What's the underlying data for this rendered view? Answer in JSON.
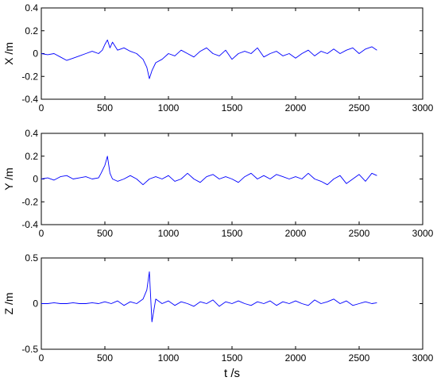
{
  "chart_data": [
    {
      "type": "line",
      "ylabel": "X /m",
      "xlabel": "",
      "xlim": [
        0,
        3000
      ],
      "ylim": [
        -0.4,
        0.4
      ],
      "x_ticks": [
        "0",
        "500",
        "1000",
        "1500",
        "2000",
        "2500",
        "3000"
      ],
      "y_ticks": [
        "0.4",
        "0.2",
        "0",
        "-0.2",
        "-0.4"
      ],
      "color": "#0000ff",
      "grid": false,
      "series": [
        {
          "x": [
            0,
            50,
            100,
            150,
            200,
            250,
            300,
            350,
            400,
            450,
            480,
            500,
            520,
            540,
            560,
            600,
            650,
            700,
            750,
            800,
            830,
            850,
            870,
            900,
            950,
            1000,
            1050,
            1100,
            1150,
            1200,
            1250,
            1300,
            1350,
            1400,
            1450,
            1500,
            1550,
            1600,
            1650,
            1700,
            1750,
            1800,
            1850,
            1900,
            1950,
            2000,
            2050,
            2100,
            2150,
            2200,
            2250,
            2300,
            2350,
            2400,
            2450,
            2500,
            2550,
            2600,
            2640
          ],
          "y": [
            0.0,
            -0.01,
            0.0,
            -0.03,
            -0.06,
            -0.04,
            -0.02,
            0.0,
            0.02,
            0.0,
            0.03,
            0.08,
            0.12,
            0.05,
            0.1,
            0.03,
            0.05,
            0.02,
            0.0,
            -0.05,
            -0.12,
            -0.22,
            -0.15,
            -0.08,
            -0.05,
            0.0,
            -0.02,
            0.03,
            0.0,
            -0.03,
            0.02,
            0.05,
            0.0,
            -0.02,
            0.03,
            -0.05,
            0.0,
            0.02,
            0.0,
            0.05,
            -0.03,
            0.0,
            0.02,
            -0.02,
            0.0,
            -0.04,
            0.0,
            0.03,
            -0.02,
            0.02,
            0.0,
            0.04,
            0.0,
            0.03,
            0.05,
            0.0,
            0.04,
            0.06,
            0.03
          ]
        }
      ]
    },
    {
      "type": "line",
      "ylabel": "Y /m",
      "xlabel": "",
      "xlim": [
        0,
        3000
      ],
      "ylim": [
        -0.4,
        0.4
      ],
      "x_ticks": [
        "0",
        "500",
        "1000",
        "1500",
        "2000",
        "2500",
        "3000"
      ],
      "y_ticks": [
        "0.4",
        "0.2",
        "0",
        "-0.2",
        "-0.4"
      ],
      "color": "#0000ff",
      "grid": false,
      "series": [
        {
          "x": [
            0,
            50,
            100,
            150,
            200,
            250,
            300,
            350,
            400,
            450,
            470,
            500,
            520,
            540,
            560,
            600,
            650,
            700,
            750,
            800,
            850,
            900,
            950,
            1000,
            1050,
            1100,
            1150,
            1200,
            1250,
            1300,
            1350,
            1400,
            1450,
            1500,
            1550,
            1600,
            1650,
            1700,
            1750,
            1800,
            1850,
            1900,
            1950,
            2000,
            2050,
            2100,
            2150,
            2200,
            2250,
            2300,
            2350,
            2400,
            2450,
            2500,
            2550,
            2600,
            2640
          ],
          "y": [
            0.0,
            0.01,
            -0.01,
            0.02,
            0.03,
            0.0,
            0.01,
            0.02,
            0.0,
            0.01,
            0.05,
            0.12,
            0.2,
            0.05,
            0.0,
            -0.02,
            0.0,
            0.03,
            0.0,
            -0.05,
            0.0,
            0.02,
            0.0,
            0.03,
            -0.02,
            0.0,
            0.05,
            0.0,
            -0.03,
            0.02,
            0.04,
            0.0,
            0.02,
            0.0,
            -0.03,
            0.02,
            0.05,
            0.0,
            0.03,
            0.0,
            0.04,
            0.02,
            0.0,
            0.02,
            0.0,
            0.05,
            0.0,
            -0.02,
            -0.05,
            0.0,
            0.03,
            -0.04,
            0.0,
            0.04,
            -0.02,
            0.05,
            0.03
          ]
        }
      ]
    },
    {
      "type": "line",
      "ylabel": "Z /m",
      "xlabel": "t /s",
      "xlim": [
        0,
        3000
      ],
      "ylim": [
        -0.5,
        0.5
      ],
      "x_ticks": [
        "0",
        "500",
        "1000",
        "1500",
        "2000",
        "2500",
        "3000"
      ],
      "y_ticks": [
        "0.5",
        "0",
        "-0.5"
      ],
      "color": "#0000ff",
      "grid": false,
      "series": [
        {
          "x": [
            0,
            50,
            100,
            150,
            200,
            250,
            300,
            350,
            400,
            450,
            500,
            550,
            600,
            650,
            700,
            750,
            800,
            830,
            850,
            870,
            900,
            950,
            1000,
            1050,
            1100,
            1150,
            1200,
            1250,
            1300,
            1350,
            1400,
            1450,
            1500,
            1550,
            1600,
            1650,
            1700,
            1750,
            1800,
            1850,
            1900,
            1950,
            2000,
            2050,
            2100,
            2150,
            2200,
            2250,
            2300,
            2350,
            2400,
            2450,
            2500,
            2550,
            2600,
            2640
          ],
          "y": [
            0.0,
            0.0,
            0.01,
            0.0,
            0.0,
            0.01,
            0.0,
            0.0,
            0.01,
            0.0,
            0.02,
            0.0,
            0.03,
            -0.02,
            0.02,
            0.0,
            0.05,
            0.15,
            0.35,
            -0.2,
            0.05,
            0.0,
            0.03,
            -0.02,
            0.02,
            0.0,
            -0.03,
            0.02,
            0.0,
            0.04,
            -0.03,
            0.02,
            0.0,
            0.03,
            0.0,
            -0.02,
            0.02,
            0.0,
            0.03,
            -0.02,
            0.02,
            0.0,
            0.03,
            0.0,
            -0.02,
            0.04,
            0.0,
            0.02,
            0.05,
            0.0,
            0.03,
            -0.02,
            0.0,
            0.02,
            0.0,
            0.01
          ]
        }
      ]
    }
  ]
}
